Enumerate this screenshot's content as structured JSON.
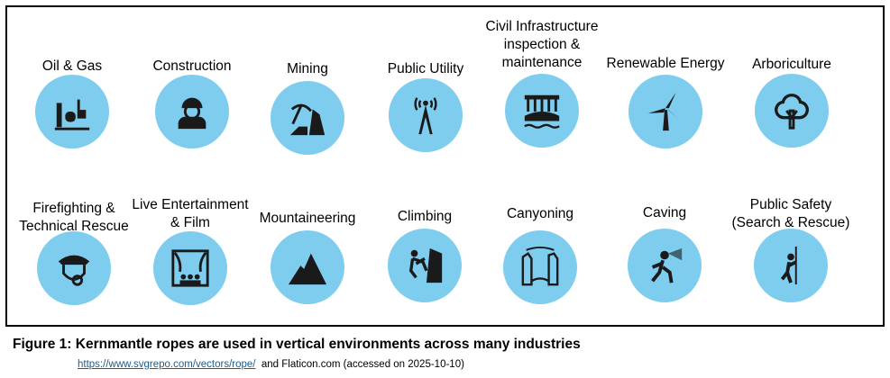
{
  "industries": [
    {
      "label": "Oil & Gas",
      "icon": "oil-refinery-icon"
    },
    {
      "label": "Construction",
      "icon": "construction-worker-icon"
    },
    {
      "label": "Mining",
      "icon": "pickaxe-mining-icon"
    },
    {
      "label": "Public Utility",
      "icon": "transmission-tower-icon"
    },
    {
      "label": "Civil Infrastructure inspection & maintenance",
      "icon": "dam-icon"
    },
    {
      "label": "Renewable Energy",
      "icon": "wind-turbine-icon"
    },
    {
      "label": "Arboriculture",
      "icon": "tree-icon"
    },
    {
      "label": "Firefighting & Technical Rescue",
      "icon": "firefighter-mask-icon"
    },
    {
      "label": "Live Entertainment & Film",
      "icon": "theater-stage-icon"
    },
    {
      "label": "Mountaineering",
      "icon": "mountain-icon"
    },
    {
      "label": "Climbing",
      "icon": "climber-icon"
    },
    {
      "label": "Canyoning",
      "icon": "canyon-icon"
    },
    {
      "label": "Caving",
      "icon": "caver-headlamp-icon"
    },
    {
      "label": "Public Safety (Search & Rescue)",
      "icon": "rescuer-rope-icon"
    }
  ],
  "caption": "Figure 1: Kernmantle ropes are used in vertical environments across many industries",
  "credit": {
    "link": "https://www.svgrepo.com/vectors/rope/",
    "and": "and",
    "flaticon": "Flaticon.com",
    "accessed": "(accessed on 2025-10-10)"
  },
  "colors": {
    "circle": "#7fcdee",
    "icon": "#1a1a1a"
  }
}
